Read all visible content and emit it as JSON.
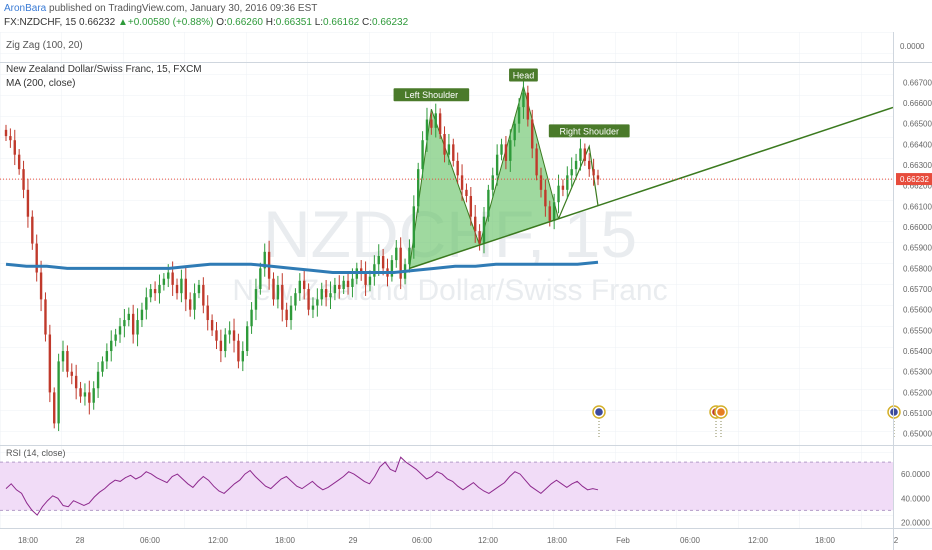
{
  "header": {
    "author": "AronBara",
    "published": "published on TradingView.com, January 30, 2016 09:36 EST",
    "symbol": "FX:NZDCHF, 15",
    "last": "0.66232",
    "change_arrow": "▲",
    "change": "+0.00580 (+0.88%)",
    "o_label": "O:",
    "o_value": "0.66260",
    "h_label": "H:",
    "h_value": "0.66351",
    "l_label": "L:",
    "l_value": "0.66162",
    "c_label": "C:",
    "c_value": "0.66232"
  },
  "panes": {
    "zigzag_label": "Zig Zag (100, 20)",
    "zigzag_axis": "0.0000",
    "main_title": "New Zealand Dollar/Swiss Franc, 15, FXCM",
    "ma_label": "MA (200, close)",
    "rsi_label": "RSI (14, close)",
    "watermark_big": "NZDCHF, 15",
    "watermark_small": "New Zealand Dollar/Swiss Franc"
  },
  "annotations": {
    "left_shoulder": "Left Shoulder",
    "head": "Head",
    "right_shoulder": "Right Shoulder"
  },
  "colors": {
    "up": "#2e9a3a",
    "down": "#c0392b",
    "ma": "#2f7bb5",
    "pattern_fill": "#6cc46c",
    "pattern_line": "#3b7a1f",
    "label_bg": "#4a7a2a",
    "rsi_line": "#8e2a8e",
    "rsi_band": "#f1dcf7",
    "price_badge": "#e74c3c"
  },
  "chart_data": {
    "type": "candlestick",
    "price_axis": {
      "ticks": [
        "0.66700",
        "0.66600",
        "0.66500",
        "0.66400",
        "0.66300",
        "0.66200",
        "0.66100",
        "0.66000",
        "0.65900",
        "0.65800",
        "0.65700",
        "0.65600",
        "0.65500",
        "0.65400",
        "0.65300",
        "0.65200",
        "0.65100",
        "0.65000"
      ],
      "current_price": "0.66232",
      "ylim": [
        0.6496,
        0.6675
      ]
    },
    "time_axis": {
      "ticks": [
        "18:00",
        "28",
        "06:00",
        "12:00",
        "18:00",
        "29",
        "06:00",
        "12:00",
        "18:00",
        "Feb",
        "06:00",
        "12:00",
        "18:00",
        "2"
      ]
    },
    "rsi_axis": {
      "ticks": [
        "60.0000",
        "40.0000",
        "20.0000"
      ],
      "ylim": [
        17,
        80
      ],
      "band": [
        30,
        70
      ]
    },
    "ohlc_seed": {
      "close": [
        0.6644,
        0.6642,
        0.6635,
        0.6628,
        0.6618,
        0.6605,
        0.6592,
        0.6578,
        0.6565,
        0.6548,
        0.652,
        0.6505,
        0.6535,
        0.654,
        0.653,
        0.6528,
        0.6522,
        0.6518,
        0.652,
        0.6515,
        0.6522,
        0.653,
        0.6535,
        0.654,
        0.6545,
        0.6548,
        0.6552,
        0.6555,
        0.6558,
        0.6548,
        0.6555,
        0.656,
        0.6566,
        0.657,
        0.6568,
        0.6572,
        0.6575,
        0.6578,
        0.6572,
        0.6568,
        0.6575,
        0.6565,
        0.656,
        0.6568,
        0.6572,
        0.6562,
        0.6555,
        0.655,
        0.6545,
        0.654,
        0.6548,
        0.655,
        0.6545,
        0.6535,
        0.654,
        0.6552,
        0.656,
        0.657,
        0.658,
        0.6588,
        0.6575,
        0.6565,
        0.6572,
        0.656,
        0.6555,
        0.6562,
        0.6568,
        0.6574,
        0.657,
        0.656,
        0.6562,
        0.6565,
        0.657,
        0.6566,
        0.6568,
        0.6572,
        0.657,
        0.6574,
        0.6571,
        0.6575,
        0.658,
        0.6578,
        0.6572,
        0.6576,
        0.6582,
        0.6586,
        0.658,
        0.6576,
        0.6584,
        0.659,
        0.6575,
        0.6582,
        0.659,
        0.661,
        0.6628,
        0.6642,
        0.6652,
        0.6648,
        0.6655,
        0.6645,
        0.6635,
        0.664,
        0.6632,
        0.6625,
        0.6618,
        0.6615,
        0.6605,
        0.6598,
        0.6592,
        0.6605,
        0.6618,
        0.6625,
        0.6635,
        0.664,
        0.6632,
        0.6642,
        0.665,
        0.6658,
        0.6665,
        0.6652,
        0.6638,
        0.6625,
        0.6618,
        0.661,
        0.6603,
        0.6612,
        0.662,
        0.6618,
        0.6625,
        0.6628,
        0.6632,
        0.6638,
        0.6632,
        0.6628,
        0.6625,
        0.6623
      ],
      "ma": [
        0.6582,
        0.6581,
        0.6581,
        0.658,
        0.658,
        0.658,
        0.658,
        0.658,
        0.658,
        0.6581,
        0.6582,
        0.6582,
        0.6582,
        0.6581,
        0.658,
        0.6579,
        0.6578,
        0.6578,
        0.6578,
        0.6578,
        0.6579,
        0.658,
        0.6581,
        0.6581,
        0.6582,
        0.6582,
        0.6582,
        0.6582,
        0.6582,
        0.6583
      ],
      "rsi": [
        48,
        52,
        47,
        44,
        36,
        30,
        26,
        33,
        38,
        42,
        40,
        34,
        33,
        38,
        36,
        34,
        36,
        41,
        45,
        48,
        52,
        55,
        54,
        57,
        59,
        56,
        58,
        62,
        60,
        57,
        55,
        53,
        58,
        60,
        56,
        52,
        49,
        54,
        58,
        55,
        50,
        46,
        44,
        48,
        52,
        55,
        60,
        63,
        58,
        54,
        50,
        48,
        52,
        56,
        58,
        54,
        50,
        48,
        51,
        54,
        50,
        47,
        49,
        52,
        55,
        58,
        62,
        60,
        57,
        54,
        52,
        58,
        66,
        70,
        64,
        62,
        74,
        70,
        67,
        64,
        60,
        56,
        58,
        62,
        60,
        56,
        54,
        50,
        47,
        50,
        53,
        49,
        46,
        44,
        47,
        50,
        53,
        58,
        62,
        60,
        55,
        50,
        47,
        44,
        48,
        52,
        55,
        52,
        49,
        52,
        54,
        50,
        47,
        48,
        47
      ]
    },
    "patterns": {
      "head_and_shoulders": [
        "Left Shoulder",
        "Head",
        "Right Shoulder"
      ]
    }
  }
}
